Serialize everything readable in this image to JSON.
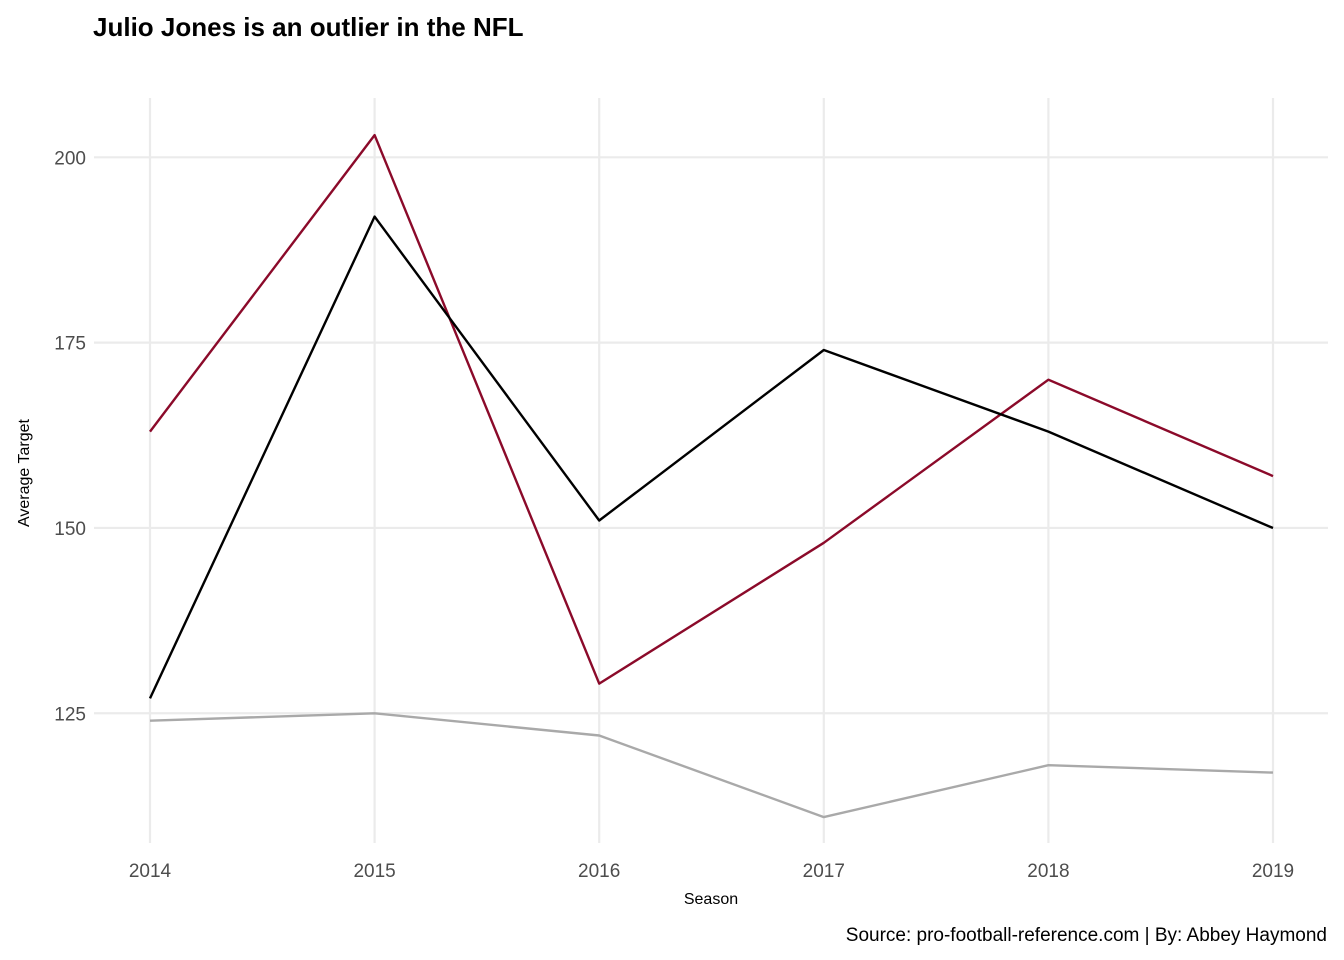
{
  "chart_data": {
    "type": "line",
    "title": "Julio Jones is an outlier in the NFL",
    "xlabel": "Season",
    "ylabel": "Average Target",
    "caption": "Source: pro-football-reference.com | By: Abbey Haymond",
    "x": [
      "2014",
      "2015",
      "2016",
      "2017",
      "2018",
      "2019"
    ],
    "ylim": [
      107.5,
      208
    ],
    "yticks": [
      125,
      150,
      175,
      200
    ],
    "grid": true,
    "legend": "none",
    "series": [
      {
        "color": "#8b0a2a",
        "values": [
          163,
          203,
          129,
          148,
          170,
          157
        ]
      },
      {
        "color": "#000000",
        "values": [
          127,
          192,
          151,
          174,
          163,
          150
        ]
      },
      {
        "color": "#a9a9a9",
        "values": [
          124,
          125,
          122,
          111,
          118,
          117
        ]
      }
    ]
  }
}
